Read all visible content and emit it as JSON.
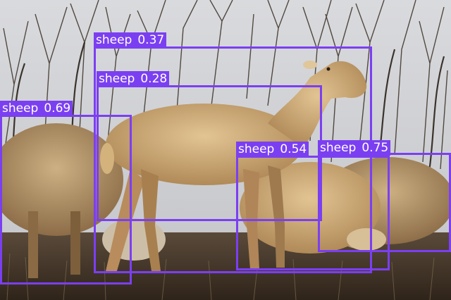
{
  "annotation_color": "#7b3ff2",
  "label_text_color": "#ffffff",
  "detections": [
    {
      "label": "sheep",
      "score": "0.37"
    },
    {
      "label": "sheep",
      "score": "0.28"
    },
    {
      "label": "sheep",
      "score": "0.69"
    },
    {
      "label": "sheep",
      "score": "0.54"
    },
    {
      "label": "sheep",
      "score": "0.75"
    }
  ]
}
